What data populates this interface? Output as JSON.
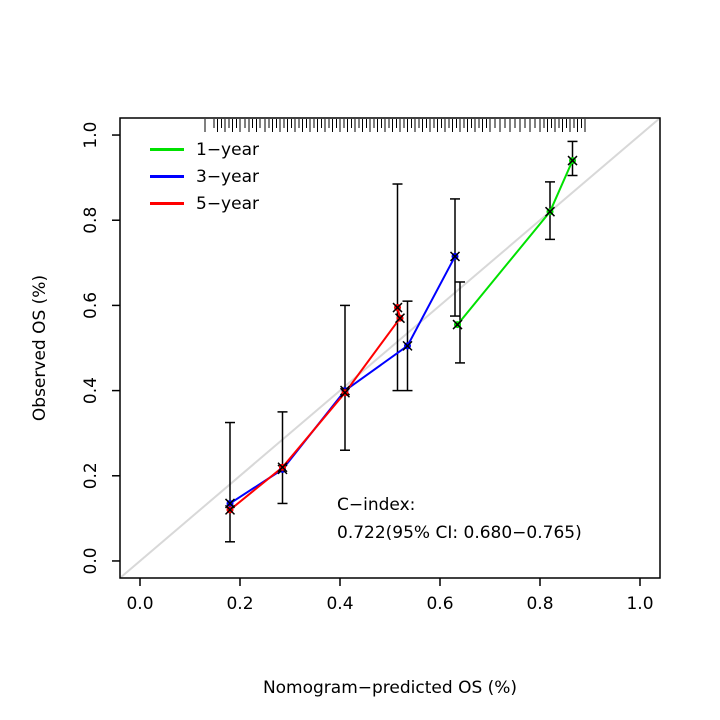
{
  "figure": {
    "background": "#FFFFFF"
  },
  "chart_data": {
    "type": "line",
    "title": "",
    "xlabel": "Nomogram−predicted OS (%)",
    "ylabel": "Observed OS (%)",
    "xlim": [
      0.0,
      1.0
    ],
    "ylim": [
      0.0,
      1.0
    ],
    "grid": false,
    "legend_position": "top-left",
    "x_ticks": {
      "values": [
        0.0,
        0.2,
        0.4,
        0.6,
        0.8,
        1.0
      ],
      "labels": [
        "0.0",
        "0.2",
        "0.4",
        "0.6",
        "0.8",
        "1.0"
      ]
    },
    "y_ticks": {
      "values": [
        0.0,
        0.2,
        0.4,
        0.6,
        0.8,
        1.0
      ],
      "labels": [
        "0.0",
        "0.2",
        "0.4",
        "0.6",
        "0.8",
        "1.0"
      ]
    },
    "reference_line": {
      "type": "diagonal",
      "color": "#D8D8D8",
      "width": 2
    },
    "series": [
      {
        "name": "1−year",
        "color": "#00E100",
        "points": [
          [
            0.635,
            0.555
          ],
          [
            0.82,
            0.82
          ],
          [
            0.865,
            0.94
          ]
        ]
      },
      {
        "name": "3−year",
        "color": "#0000FF",
        "points": [
          [
            0.18,
            0.135
          ],
          [
            0.285,
            0.215
          ],
          [
            0.41,
            0.4
          ],
          [
            0.535,
            0.505
          ],
          [
            0.63,
            0.715
          ]
        ]
      },
      {
        "name": "5−year",
        "color": "#FF0000",
        "points": [
          [
            0.18,
            0.12
          ],
          [
            0.285,
            0.22
          ],
          [
            0.41,
            0.395
          ],
          [
            0.52,
            0.57
          ],
          [
            0.515,
            0.595
          ]
        ]
      }
    ],
    "error_bars": [
      {
        "x": 0.18,
        "lo": 0.045,
        "hi": 0.325
      },
      {
        "x": 0.285,
        "lo": 0.135,
        "hi": 0.35
      },
      {
        "x": 0.41,
        "lo": 0.26,
        "hi": 0.6
      },
      {
        "x": 0.515,
        "lo": 0.4,
        "hi": 0.885
      },
      {
        "x": 0.535,
        "lo": 0.4,
        "hi": 0.61
      },
      {
        "x": 0.63,
        "lo": 0.575,
        "hi": 0.85
      },
      {
        "x": 0.64,
        "lo": 0.465,
        "hi": 0.655
      },
      {
        "x": 0.82,
        "lo": 0.755,
        "hi": 0.89
      },
      {
        "x": 0.865,
        "lo": 0.905,
        "hi": 0.985
      }
    ],
    "rug_x": [
      0.13,
      0.148,
      0.155,
      0.163,
      0.17,
      0.178,
      0.185,
      0.193,
      0.2,
      0.21,
      0.218,
      0.225,
      0.233,
      0.24,
      0.25,
      0.258,
      0.265,
      0.273,
      0.28,
      0.288,
      0.295,
      0.303,
      0.31,
      0.318,
      0.325,
      0.333,
      0.34,
      0.348,
      0.355,
      0.363,
      0.37,
      0.378,
      0.385,
      0.393,
      0.4,
      0.408,
      0.415,
      0.423,
      0.43,
      0.438,
      0.445,
      0.453,
      0.46,
      0.468,
      0.475,
      0.483,
      0.49,
      0.498,
      0.505,
      0.513,
      0.52,
      0.528,
      0.535,
      0.543,
      0.55,
      0.558,
      0.565,
      0.573,
      0.58,
      0.588,
      0.595,
      0.603,
      0.61,
      0.618,
      0.625,
      0.633,
      0.64,
      0.648,
      0.655,
      0.663,
      0.67,
      0.678,
      0.685,
      0.693,
      0.7,
      0.71,
      0.72,
      0.73,
      0.74,
      0.75,
      0.76,
      0.77,
      0.78,
      0.79,
      0.8,
      0.808,
      0.815,
      0.823,
      0.83,
      0.838,
      0.845,
      0.853,
      0.86,
      0.868,
      0.875,
      0.883,
      0.89
    ],
    "annotation": {
      "line1": "C−index:",
      "line2": "0.722(95% CI: 0.680−0.765)"
    },
    "colors": {
      "box": "#000000",
      "tick": "#000000",
      "error_bar": "#000000",
      "marker_cross": "#000000",
      "rug": "#000000"
    }
  }
}
